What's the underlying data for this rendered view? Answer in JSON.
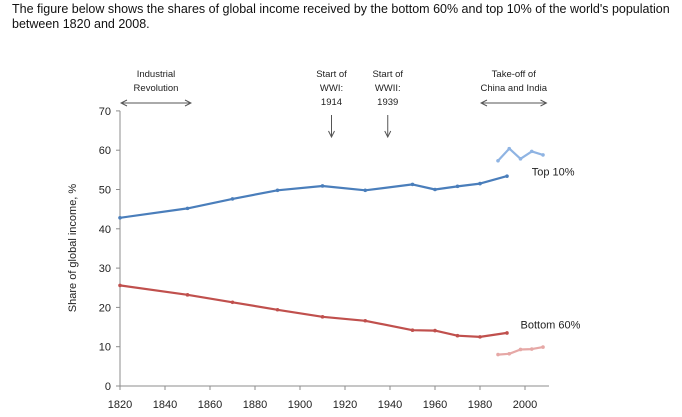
{
  "intro_text": "The figure below shows the shares of global income received by the bottom 60% and top 10% of the world's population between 1820 and 2008.",
  "chart_data": {
    "type": "line",
    "ylabel": "Share of global income, %",
    "xlim": [
      1820,
      2008
    ],
    "ylim": [
      0,
      70
    ],
    "x_ticks": [
      1820,
      1840,
      1860,
      1880,
      1900,
      1920,
      1940,
      1960,
      1980,
      2000
    ],
    "y_ticks": [
      0,
      10,
      20,
      30,
      40,
      50,
      60,
      70
    ],
    "grid": false,
    "series": [
      {
        "name": "Top 10%",
        "color": "#4a7ebb",
        "x": [
          1820,
          1850,
          1870,
          1890,
          1910,
          1929,
          1950,
          1960,
          1970,
          1980,
          1992
        ],
        "y": [
          42.8,
          45.2,
          47.6,
          49.8,
          50.9,
          49.8,
          51.3,
          50.0,
          50.8,
          51.5,
          53.4
        ]
      },
      {
        "name": "",
        "color": "#8fb4e3",
        "x": [
          1988,
          1993,
          1998,
          2003,
          2008
        ],
        "y": [
          57.3,
          60.4,
          57.8,
          59.7,
          58.8
        ]
      },
      {
        "name": "Bottom 60%",
        "color": "#c0504d",
        "x": [
          1820,
          1850,
          1870,
          1890,
          1910,
          1929,
          1950,
          1960,
          1970,
          1980,
          1992
        ],
        "y": [
          25.6,
          23.2,
          21.3,
          19.4,
          17.6,
          16.6,
          14.2,
          14.1,
          12.8,
          12.5,
          13.5
        ]
      },
      {
        "name": "",
        "color": "#e6a8a6",
        "x": [
          1988,
          1993,
          1998,
          2003,
          2008
        ],
        "y": [
          8.0,
          8.2,
          9.3,
          9.4,
          9.9
        ]
      }
    ],
    "series_labels": [
      {
        "text": "Top 10%",
        "x": 2003,
        "y": 53.5
      },
      {
        "text": "Bottom 60%",
        "x": 1998,
        "y": 14.6
      }
    ],
    "annotations": [
      {
        "lines": [
          "Industrial",
          "Revolution"
        ],
        "arrow": "horizontal",
        "x_from": 1820,
        "x_to": 1852
      },
      {
        "lines": [
          "Start of",
          "WWI:",
          "1914"
        ],
        "arrow": "down",
        "x": 1914
      },
      {
        "lines": [
          "Start of",
          "WWII:",
          "1939"
        ],
        "arrow": "down",
        "x": 1939
      },
      {
        "lines": [
          "Take-off of",
          "China and India"
        ],
        "arrow": "horizontal",
        "x_from": 1980,
        "x_to": 2010
      }
    ]
  }
}
